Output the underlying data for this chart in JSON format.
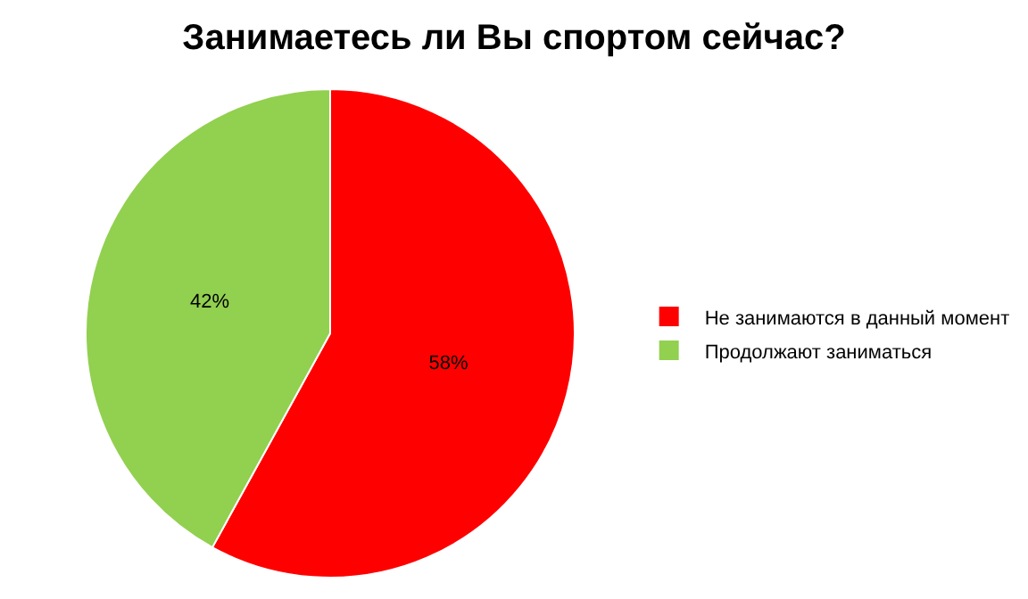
{
  "chart_data": {
    "type": "pie",
    "title": "Занимаетесь ли Вы спортом сейчас?",
    "categories": [
      "Не занимаются в данный момент",
      "Продолжают заниматься"
    ],
    "values": [
      58,
      42
    ],
    "colors": [
      "#ff0000",
      "#92d050"
    ],
    "value_labels": [
      "58%",
      "42%"
    ],
    "legend": "right"
  }
}
